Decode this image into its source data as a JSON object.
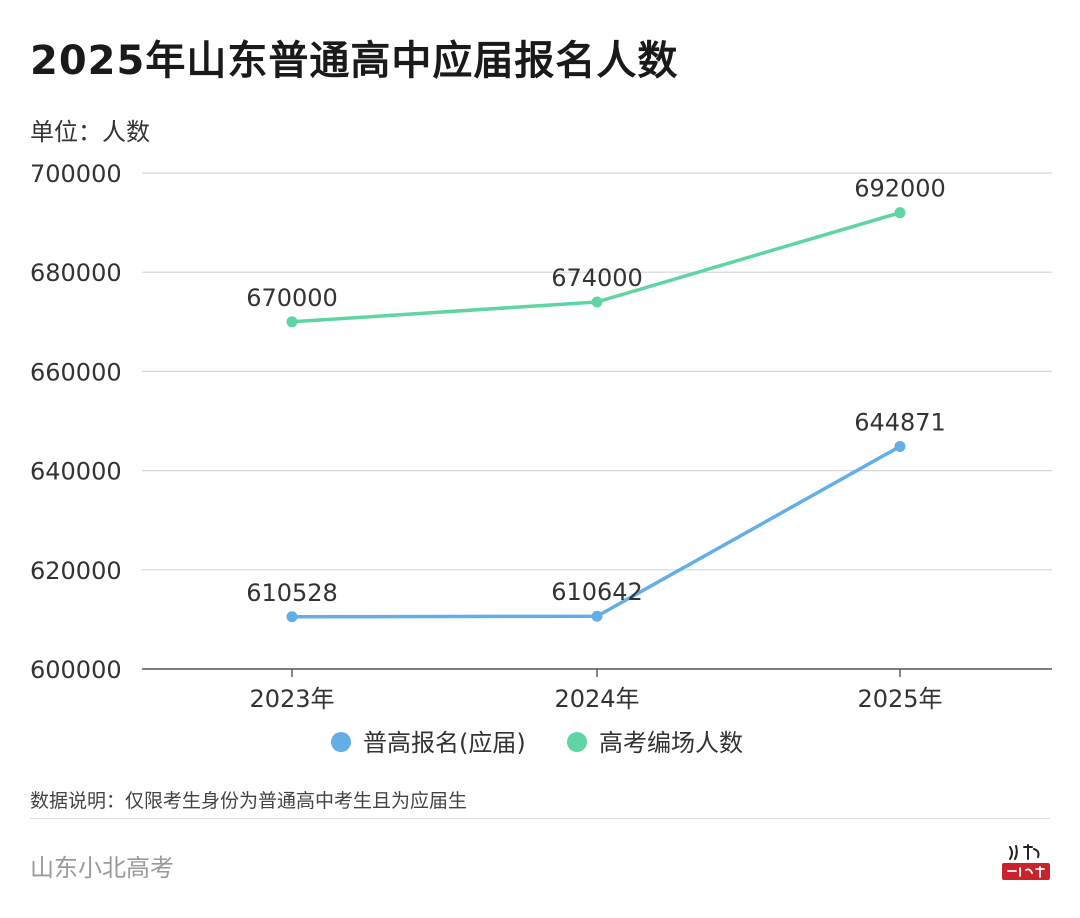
{
  "page": {
    "title": "2025年山东普通高中应届报名人数",
    "unit_label": "单位：人数",
    "note": "数据说明：仅限考生身份为普通高中考生且为应届生",
    "brand": "山东小北高考"
  },
  "chart_data": {
    "type": "line",
    "title": "2025年山东普通高中应届报名人数",
    "ylabel": "单位：人数",
    "xlabel": "",
    "categories": [
      "2023年",
      "2024年",
      "2025年"
    ],
    "ylim": [
      600000,
      700000
    ],
    "yticks": [
      600000,
      620000,
      640000,
      660000,
      680000,
      700000
    ],
    "grid": true,
    "legend_position": "bottom",
    "series": [
      {
        "name": "普高报名(应届)",
        "values": [
          610528,
          610642,
          644871
        ],
        "color": "#64aee8"
      },
      {
        "name": "高考编场人数",
        "values": [
          670000,
          674000,
          692000
        ],
        "color": "#5fd5a4"
      }
    ]
  }
}
